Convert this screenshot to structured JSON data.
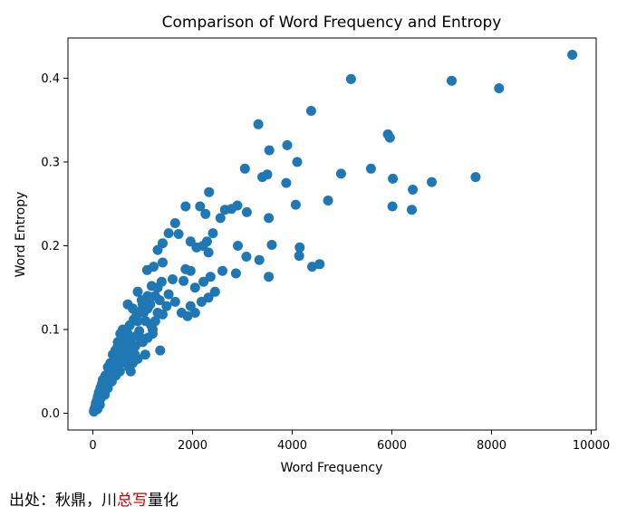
{
  "chart_data": {
    "type": "scatter",
    "title": "Comparison of Word Frequency and Entropy",
    "xlabel": "Word Frequency",
    "ylabel": "Word Entropy",
    "xlim": [
      -500,
      10100
    ],
    "ylim": [
      -0.02,
      0.448
    ],
    "xticks": [
      "0",
      "2000",
      "4000",
      "6000",
      "8000",
      "10000"
    ],
    "xtick_values": [
      0,
      2000,
      4000,
      6000,
      8000,
      10000
    ],
    "yticks": [
      "0.0",
      "0.1",
      "0.2",
      "0.3",
      "0.4"
    ],
    "ytick_values": [
      0,
      0.1,
      0.2,
      0.3,
      0.4
    ],
    "color": "#1f77b4",
    "grid": false,
    "points": [
      [
        9620,
        0.428
      ],
      [
        7200,
        0.397
      ],
      [
        8150,
        0.388
      ],
      [
        5180,
        0.399
      ],
      [
        4380,
        0.361
      ],
      [
        5920,
        0.333
      ],
      [
        5960,
        0.329
      ],
      [
        3320,
        0.345
      ],
      [
        3540,
        0.314
      ],
      [
        3900,
        0.32
      ],
      [
        4100,
        0.3
      ],
      [
        3050,
        0.292
      ],
      [
        3400,
        0.282
      ],
      [
        3500,
        0.285
      ],
      [
        3880,
        0.275
      ],
      [
        4980,
        0.286
      ],
      [
        5580,
        0.292
      ],
      [
        6020,
        0.28
      ],
      [
        6800,
        0.276
      ],
      [
        7680,
        0.282
      ],
      [
        6420,
        0.267
      ],
      [
        6010,
        0.247
      ],
      [
        6400,
        0.243
      ],
      [
        4720,
        0.254
      ],
      [
        4070,
        0.249
      ],
      [
        3530,
        0.233
      ],
      [
        3090,
        0.24
      ],
      [
        2900,
        0.248
      ],
      [
        2780,
        0.244
      ],
      [
        2650,
        0.243
      ],
      [
        2560,
        0.233
      ],
      [
        2330,
        0.264
      ],
      [
        2150,
        0.247
      ],
      [
        1860,
        0.247
      ],
      [
        2260,
        0.238
      ],
      [
        2410,
        0.215
      ],
      [
        2290,
        0.205
      ],
      [
        2210,
        0.2
      ],
      [
        2080,
        0.198
      ],
      [
        1960,
        0.205
      ],
      [
        1650,
        0.227
      ],
      [
        1720,
        0.214
      ],
      [
        1520,
        0.215
      ],
      [
        1400,
        0.203
      ],
      [
        1300,
        0.195
      ],
      [
        1090,
        0.171
      ],
      [
        1220,
        0.175
      ],
      [
        1400,
        0.18
      ],
      [
        1860,
        0.172
      ],
      [
        1960,
        0.17
      ],
      [
        2320,
        0.192
      ],
      [
        2910,
        0.2
      ],
      [
        3080,
        0.187
      ],
      [
        3340,
        0.183
      ],
      [
        3590,
        0.201
      ],
      [
        4150,
        0.198
      ],
      [
        4140,
        0.188
      ],
      [
        4400,
        0.175
      ],
      [
        4550,
        0.178
      ],
      [
        3530,
        0.163
      ],
      [
        2870,
        0.167
      ],
      [
        2600,
        0.17
      ],
      [
        2360,
        0.163
      ],
      [
        2220,
        0.157
      ],
      [
        2050,
        0.15
      ],
      [
        1820,
        0.158
      ],
      [
        1600,
        0.16
      ],
      [
        1380,
        0.157
      ],
      [
        1180,
        0.152
      ],
      [
        2320,
        0.138
      ],
      [
        2180,
        0.133
      ],
      [
        1960,
        0.128
      ],
      [
        1780,
        0.12
      ],
      [
        1650,
        0.133
      ],
      [
        1520,
        0.142
      ],
      [
        1340,
        0.135
      ],
      [
        1300,
        0.12
      ],
      [
        1170,
        0.105
      ],
      [
        1060,
        0.11
      ],
      [
        1350,
        0.075
      ],
      [
        1200,
        0.095
      ],
      [
        2450,
        0.145
      ],
      [
        2050,
        0.12
      ],
      [
        1900,
        0.116
      ],
      [
        900,
        0.145
      ],
      [
        1000,
        0.13
      ],
      [
        800,
        0.125
      ],
      [
        700,
        0.13
      ],
      [
        600,
        0.1
      ],
      [
        900,
        0.11
      ],
      [
        950,
        0.09
      ],
      [
        1050,
        0.07
      ],
      [
        850,
        0.08
      ],
      [
        750,
        0.085
      ],
      [
        650,
        0.09
      ],
      [
        550,
        0.095
      ],
      [
        600,
        0.08
      ],
      [
        700,
        0.07
      ],
      [
        800,
        0.06
      ],
      [
        500,
        0.085
      ],
      [
        450,
        0.075
      ],
      [
        400,
        0.07
      ],
      [
        350,
        0.06
      ],
      [
        300,
        0.055
      ],
      [
        250,
        0.045
      ],
      [
        200,
        0.04
      ],
      [
        150,
        0.03
      ],
      [
        100,
        0.02
      ],
      [
        60,
        0.012
      ],
      [
        30,
        0.005
      ],
      [
        20,
        0.002
      ],
      [
        50,
        0.008
      ],
      [
        80,
        0.015
      ],
      [
        120,
        0.025
      ],
      [
        180,
        0.035
      ],
      [
        220,
        0.03
      ],
      [
        280,
        0.04
      ],
      [
        330,
        0.048
      ],
      [
        380,
        0.055
      ],
      [
        420,
        0.062
      ],
      [
        480,
        0.068
      ],
      [
        520,
        0.072
      ],
      [
        580,
        0.078
      ],
      [
        620,
        0.065
      ],
      [
        680,
        0.06
      ],
      [
        720,
        0.055
      ],
      [
        760,
        0.05
      ],
      [
        540,
        0.05
      ],
      [
        460,
        0.045
      ],
      [
        380,
        0.038
      ],
      [
        300,
        0.03
      ],
      [
        240,
        0.022
      ],
      [
        160,
        0.018
      ],
      [
        140,
        0.01
      ],
      [
        90,
        0.005
      ],
      [
        660,
        0.1
      ],
      [
        740,
        0.105
      ],
      [
        820,
        0.112
      ],
      [
        880,
        0.118
      ],
      [
        960,
        0.122
      ],
      [
        1020,
        0.12
      ],
      [
        1100,
        0.125
      ],
      [
        1150,
        0.13
      ],
      [
        1250,
        0.14
      ],
      [
        1300,
        0.15
      ],
      [
        1100,
        0.14
      ],
      [
        980,
        0.135
      ],
      [
        870,
        0.092
      ],
      [
        930,
        0.098
      ],
      [
        1000,
        0.085
      ],
      [
        1100,
        0.09
      ],
      [
        1200,
        0.1
      ],
      [
        1250,
        0.11
      ],
      [
        1400,
        0.118
      ],
      [
        1480,
        0.128
      ],
      [
        700,
        0.095
      ],
      [
        620,
        0.09
      ],
      [
        560,
        0.088
      ],
      [
        500,
        0.08
      ],
      [
        440,
        0.06
      ],
      [
        360,
        0.05
      ],
      [
        320,
        0.042
      ],
      [
        260,
        0.035
      ],
      [
        200,
        0.028
      ],
      [
        130,
        0.015
      ],
      [
        560,
        0.06
      ],
      [
        640,
        0.07
      ],
      [
        760,
        0.075
      ],
      [
        840,
        0.07
      ],
      [
        900,
        0.065
      ]
    ]
  },
  "footer": {
    "prefix": "出处：秋鼎，川",
    "highlight": "总写",
    "suffix": "量化"
  }
}
